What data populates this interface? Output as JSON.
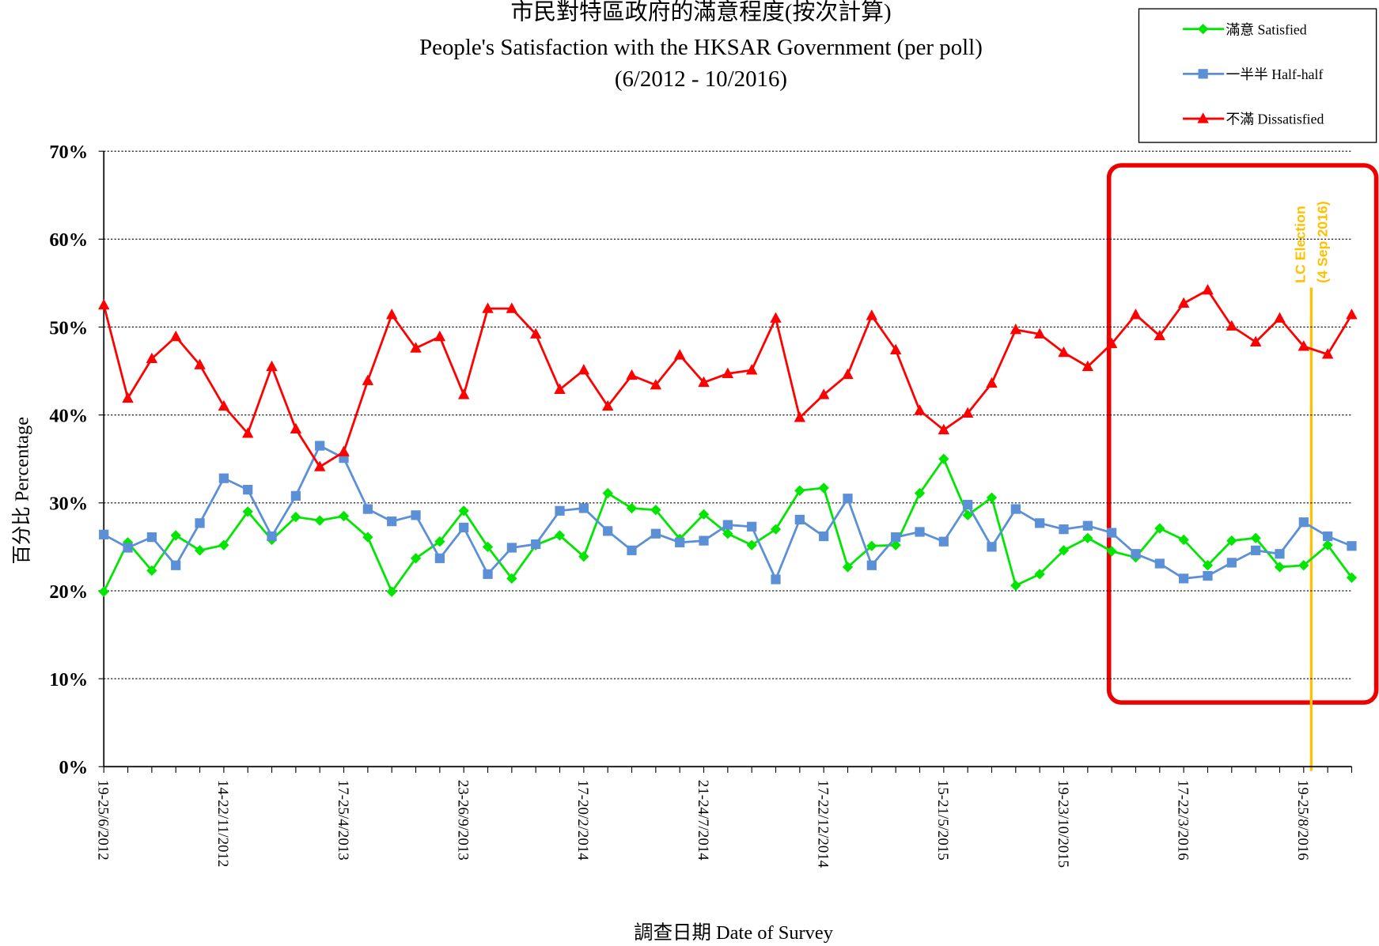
{
  "chart_data": {
    "type": "line",
    "title": [
      "市民對特區政府的滿意程度(按次計算)",
      "People's Satisfaction with the HKSAR Government (per poll)",
      "(6/2012 - 10/2016)"
    ],
    "y_label": "百分比 Percentage",
    "x_label": "調查日期 Date of Survey",
    "annotation": [
      "LC Election",
      "(4 Sep 2016)"
    ],
    "categories": [
      "19-25/6/2012",
      null,
      null,
      null,
      null,
      "14-22/11/2012",
      null,
      null,
      null,
      null,
      "17-25/4/2013",
      null,
      null,
      null,
      null,
      "23-26/9/2013",
      null,
      null,
      null,
      null,
      "17-20/2/2014",
      null,
      null,
      null,
      null,
      "21-24/7/2014",
      null,
      null,
      null,
      null,
      "17-22/12/2014",
      null,
      null,
      null,
      null,
      "15-21/5/2015",
      null,
      null,
      null,
      null,
      "19-23/10/2015",
      null,
      null,
      null,
      null,
      "17-22/3/2016",
      null,
      null,
      null,
      null,
      "19-25/8/2016",
      null,
      null
    ],
    "series": [
      {
        "name": "滿意 Satisfied",
        "color": "#00e600",
        "marker": "diamond",
        "values": [
          19.9,
          25.5,
          22.3,
          26.3,
          24.6,
          25.2,
          29.0,
          25.8,
          28.4,
          28.0,
          28.5,
          26.1,
          19.9,
          23.7,
          25.6,
          29.1,
          25.0,
          21.4,
          25.2,
          26.3,
          23.9,
          31.1,
          29.4,
          29.2,
          25.9,
          28.7,
          26.5,
          25.2,
          27.0,
          31.4,
          31.7,
          22.7,
          25.1,
          25.2,
          31.1,
          35.0,
          28.6,
          30.6,
          20.6,
          21.9,
          24.6,
          26.0,
          24.5,
          23.8,
          27.1,
          25.8,
          22.9,
          25.7,
          26.0,
          22.7,
          22.9,
          25.2,
          21.5
        ]
      },
      {
        "name": "一半半 Half-half",
        "color": "#5b8fd6",
        "marker": "square",
        "values": [
          26.4,
          24.9,
          26.1,
          22.9,
          27.7,
          32.8,
          31.5,
          26.2,
          30.8,
          36.5,
          35.1,
          29.3,
          27.9,
          28.6,
          23.7,
          27.2,
          21.9,
          24.9,
          25.3,
          29.1,
          29.4,
          26.8,
          24.6,
          26.5,
          25.5,
          25.7,
          27.5,
          27.3,
          21.3,
          28.1,
          26.2,
          30.5,
          22.9,
          26.1,
          26.7,
          25.6,
          29.8,
          25.0,
          29.3,
          27.7,
          27.0,
          27.4,
          26.6,
          24.2,
          23.1,
          21.4,
          21.7,
          23.2,
          24.6,
          24.2,
          27.8,
          26.2,
          25.1
        ]
      },
      {
        "name": "不滿 Dissatisfied",
        "color": "#ff0000",
        "marker": "triangle",
        "values": [
          52.5,
          41.9,
          46.4,
          48.9,
          45.7,
          41.0,
          37.9,
          45.5,
          38.4,
          34.1,
          35.8,
          43.9,
          51.4,
          47.6,
          48.9,
          42.3,
          52.1,
          52.1,
          49.2,
          42.9,
          45.1,
          41.0,
          44.5,
          43.4,
          46.8,
          43.7,
          44.7,
          45.1,
          51.0,
          39.7,
          42.3,
          44.6,
          51.3,
          47.4,
          40.5,
          38.3,
          40.2,
          43.6,
          49.7,
          49.2,
          47.1,
          45.5,
          48.1,
          51.4,
          49.0,
          52.7,
          54.2,
          50.1,
          48.3,
          51.0,
          47.8,
          46.9,
          51.4
        ]
      }
    ],
    "ylim": [
      0,
      70
    ],
    "yticks": [
      {
        "value": 0,
        "label": "0%"
      },
      {
        "value": 10,
        "label": "10%"
      },
      {
        "value": 20,
        "label": "20%"
      },
      {
        "value": 30,
        "label": "30%"
      },
      {
        "value": 40,
        "label": "40%"
      },
      {
        "value": 50,
        "label": "50%"
      },
      {
        "value": 60,
        "label": "60%"
      },
      {
        "value": 70,
        "label": "70%"
      }
    ],
    "grid": true
  }
}
